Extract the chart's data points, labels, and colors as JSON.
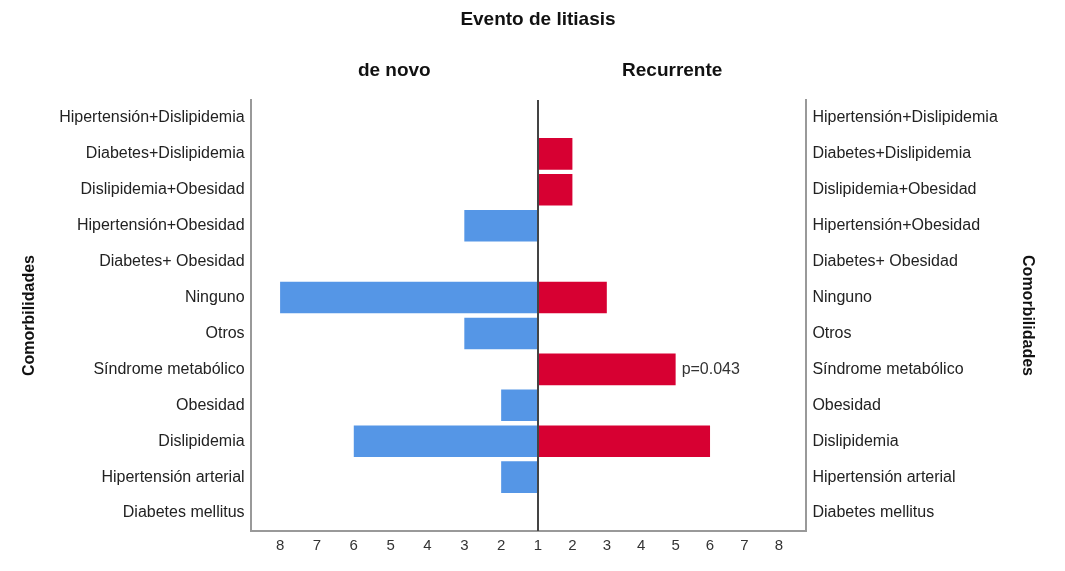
{
  "chart_data": [
    {
      "type": "bar",
      "orientation": "horizontal",
      "title": "Evento de litiasis",
      "ylabel": "Comorbilidades",
      "categories": [
        "Hipertensión+Dislipidemia",
        "Diabetes+Dislipidemia",
        "Dislipidemia+Obesidad",
        "Hipertensión+Obesidad",
        "Diabetes+ Obesidad",
        "Ninguno",
        "Otros",
        "Síndrome metabólico",
        "Obesidad",
        "Dislipidemia",
        "Hipertensión arterial",
        "Diabetes mellitus"
      ],
      "series": [
        {
          "name": "de novo",
          "color": "#5596e6",
          "values": [
            null,
            null,
            null,
            3,
            null,
            8,
            3,
            null,
            2,
            6,
            2,
            null
          ]
        }
      ],
      "xlim": [
        8.8,
        1
      ],
      "xticks": [
        8,
        7,
        6,
        5,
        4,
        3,
        2,
        1
      ],
      "grid": false
    },
    {
      "type": "bar",
      "orientation": "horizontal",
      "y2label": "Comorbilidades",
      "categories": [
        "Hipertensión+Dislipidemia",
        "Diabetes+Dislipidemia",
        "Dislipidemia+Obesidad",
        "Hipertensión+Obesidad",
        "Diabetes+ Obesidad",
        "Ninguno",
        "Otros",
        "Síndrome metabólico",
        "Obesidad",
        "Dislipidemia",
        "Hipertensión arterial",
        "Diabetes mellitus"
      ],
      "series": [
        {
          "name": "Recurrente",
          "color": "#d70032",
          "values": [
            null,
            2,
            2,
            null,
            null,
            3,
            null,
            5,
            null,
            6,
            null,
            null
          ]
        }
      ],
      "xlim": [
        1,
        8.8
      ],
      "xticks": [
        2,
        3,
        4,
        5,
        6,
        7,
        8
      ],
      "annotations": [
        {
          "text": "p=0.043",
          "x": 5,
          "y": "Síndrome metabólico"
        }
      ],
      "grid": false
    }
  ]
}
